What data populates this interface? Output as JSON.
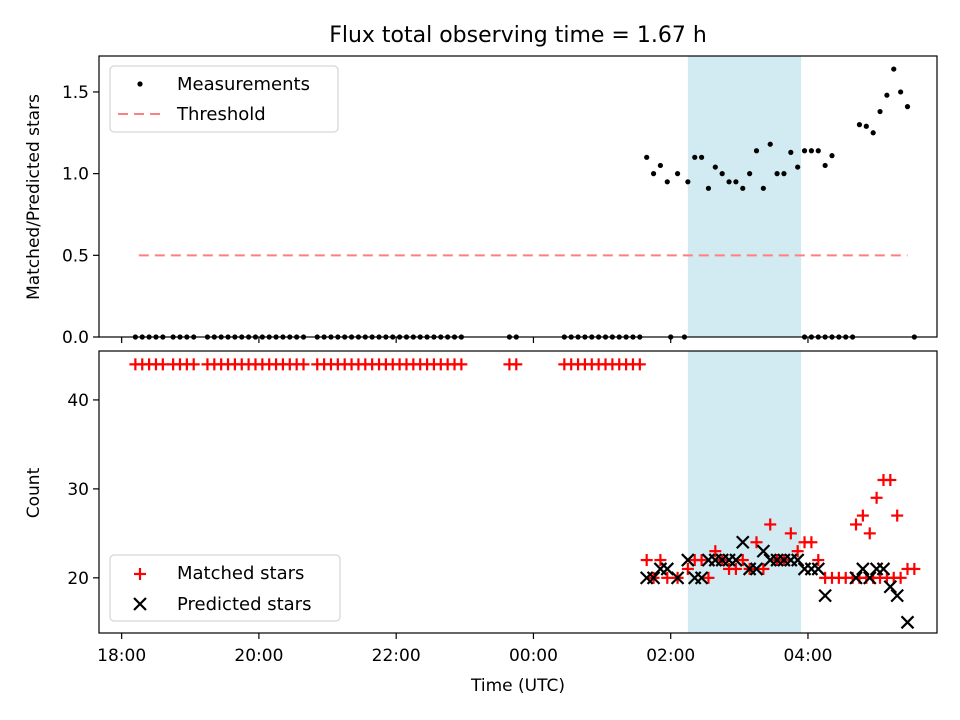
{
  "chart_data": [
    {
      "panel": "top",
      "type": "scatter",
      "title": "Flux total observing time = 1.67 h",
      "xlabel": "",
      "ylabel": "Matched/Predicted stars",
      "ylim": [
        0,
        1.72
      ],
      "yticks": [
        "0.0",
        "0.5",
        "1.0",
        "1.5"
      ],
      "highlight_span": {
        "x": [
          2.25,
          3.9
        ],
        "color": "#add8e6"
      },
      "legend": {
        "position": "upper-left",
        "entries": [
          "Measurements",
          "Threshold"
        ]
      },
      "series": [
        {
          "name": "Measurements",
          "type": "scatter",
          "color": "#000000",
          "points": [
            [
              -5.8,
              0
            ],
            [
              -5.7,
              0
            ],
            [
              -5.6,
              0
            ],
            [
              -5.5,
              0
            ],
            [
              -5.4,
              0
            ],
            [
              -5.25,
              0
            ],
            [
              -5.15,
              0
            ],
            [
              -5.05,
              0
            ],
            [
              -4.95,
              0
            ],
            [
              -4.75,
              0
            ],
            [
              -4.65,
              0
            ],
            [
              -4.55,
              0
            ],
            [
              -4.45,
              0
            ],
            [
              -4.35,
              0
            ],
            [
              -4.25,
              0
            ],
            [
              -4.15,
              0
            ],
            [
              -4.05,
              0
            ],
            [
              -3.95,
              0
            ],
            [
              -3.85,
              0
            ],
            [
              -3.75,
              0
            ],
            [
              -3.65,
              0
            ],
            [
              -3.55,
              0
            ],
            [
              -3.45,
              0
            ],
            [
              -3.35,
              0
            ],
            [
              -3.15,
              0
            ],
            [
              -3.05,
              0
            ],
            [
              -2.95,
              0
            ],
            [
              -2.85,
              0
            ],
            [
              -2.75,
              0
            ],
            [
              -2.65,
              0
            ],
            [
              -2.55,
              0
            ],
            [
              -2.45,
              0
            ],
            [
              -2.35,
              0
            ],
            [
              -2.25,
              0
            ],
            [
              -2.15,
              0
            ],
            [
              -2.05,
              0
            ],
            [
              -1.95,
              0
            ],
            [
              -1.85,
              0
            ],
            [
              -1.75,
              0
            ],
            [
              -1.65,
              0
            ],
            [
              -1.55,
              0
            ],
            [
              -1.45,
              0
            ],
            [
              -1.35,
              0
            ],
            [
              -1.25,
              0
            ],
            [
              -1.15,
              0
            ],
            [
              -1.05,
              0
            ],
            [
              -0.35,
              0
            ],
            [
              -0.25,
              0
            ],
            [
              0.45,
              0
            ],
            [
              0.55,
              0
            ],
            [
              0.65,
              0
            ],
            [
              0.75,
              0
            ],
            [
              0.85,
              0
            ],
            [
              0.95,
              0
            ],
            [
              1.05,
              0
            ],
            [
              1.15,
              0
            ],
            [
              1.25,
              0
            ],
            [
              1.35,
              0
            ],
            [
              1.45,
              0
            ],
            [
              1.55,
              0
            ],
            [
              2.0,
              0
            ],
            [
              2.2,
              0
            ],
            [
              1.65,
              1.1
            ],
            [
              1.75,
              1.0
            ],
            [
              1.85,
              1.05
            ],
            [
              1.95,
              0.95
            ],
            [
              2.1,
              1.0
            ],
            [
              2.25,
              0.95
            ],
            [
              2.35,
              1.1
            ],
            [
              2.45,
              1.1
            ],
            [
              2.55,
              0.91
            ],
            [
              2.65,
              1.04
            ],
            [
              2.75,
              1.0
            ],
            [
              2.85,
              0.95
            ],
            [
              2.95,
              0.95
            ],
            [
              3.05,
              0.91
            ],
            [
              3.15,
              1.0
            ],
            [
              3.25,
              1.14
            ],
            [
              3.35,
              0.91
            ],
            [
              3.45,
              1.18
            ],
            [
              3.55,
              1.0
            ],
            [
              3.65,
              1.0
            ],
            [
              3.75,
              1.13
            ],
            [
              3.85,
              1.04
            ],
            [
              3.95,
              1.14
            ],
            [
              4.05,
              1.14
            ],
            [
              4.15,
              1.14
            ],
            [
              4.25,
              1.05
            ],
            [
              4.35,
              1.11
            ],
            [
              3.95,
              0
            ],
            [
              4.05,
              0
            ],
            [
              4.15,
              0
            ],
            [
              4.25,
              0
            ],
            [
              4.35,
              0
            ],
            [
              4.45,
              0
            ],
            [
              4.55,
              0
            ],
            [
              4.65,
              0
            ],
            [
              4.75,
              1.3
            ],
            [
              4.85,
              1.29
            ],
            [
              4.95,
              1.25
            ],
            [
              5.05,
              1.38
            ],
            [
              5.15,
              1.48
            ],
            [
              5.25,
              1.64
            ],
            [
              5.35,
              1.5
            ],
            [
              5.45,
              1.41
            ],
            [
              5.55,
              0
            ]
          ]
        },
        {
          "name": "Threshold",
          "type": "line",
          "style": "dashed",
          "color": "#ff7f7f",
          "x": [
            -5.75,
            5.45
          ],
          "y": [
            0.5,
            0.5
          ]
        }
      ]
    },
    {
      "panel": "bottom",
      "type": "scatter",
      "title": "",
      "xlabel": "Time (UTC)",
      "ylabel": "Count",
      "ylim": [
        13.8,
        45.5
      ],
      "yticks": [
        "20",
        "30",
        "40"
      ],
      "xlim": [
        -6.33,
        5.88
      ],
      "xtick_values": [
        -6,
        -4,
        -2,
        0,
        2,
        4
      ],
      "xticks": [
        "18:00",
        "20:00",
        "22:00",
        "00:00",
        "02:00",
        "04:00"
      ],
      "highlight_span": {
        "x": [
          2.25,
          3.9
        ],
        "color": "#add8e6"
      },
      "legend": {
        "position": "lower-left",
        "entries": [
          "Matched stars",
          "Predicted stars"
        ]
      },
      "series": [
        {
          "name": "Matched stars",
          "marker": "plus",
          "color": "#ff0000",
          "points": [
            [
              -5.8,
              44
            ],
            [
              -5.7,
              44
            ],
            [
              -5.6,
              44
            ],
            [
              -5.5,
              44
            ],
            [
              -5.4,
              44
            ],
            [
              -5.25,
              44
            ],
            [
              -5.15,
              44
            ],
            [
              -5.05,
              44
            ],
            [
              -4.95,
              44
            ],
            [
              -4.75,
              44
            ],
            [
              -4.65,
              44
            ],
            [
              -4.55,
              44
            ],
            [
              -4.45,
              44
            ],
            [
              -4.35,
              44
            ],
            [
              -4.25,
              44
            ],
            [
              -4.15,
              44
            ],
            [
              -4.05,
              44
            ],
            [
              -3.95,
              44
            ],
            [
              -3.85,
              44
            ],
            [
              -3.75,
              44
            ],
            [
              -3.65,
              44
            ],
            [
              -3.55,
              44
            ],
            [
              -3.45,
              44
            ],
            [
              -3.35,
              44
            ],
            [
              -3.15,
              44
            ],
            [
              -3.05,
              44
            ],
            [
              -2.95,
              44
            ],
            [
              -2.85,
              44
            ],
            [
              -2.75,
              44
            ],
            [
              -2.65,
              44
            ],
            [
              -2.55,
              44
            ],
            [
              -2.45,
              44
            ],
            [
              -2.35,
              44
            ],
            [
              -2.25,
              44
            ],
            [
              -2.15,
              44
            ],
            [
              -2.05,
              44
            ],
            [
              -1.95,
              44
            ],
            [
              -1.85,
              44
            ],
            [
              -1.75,
              44
            ],
            [
              -1.65,
              44
            ],
            [
              -1.55,
              44
            ],
            [
              -1.45,
              44
            ],
            [
              -1.35,
              44
            ],
            [
              -1.25,
              44
            ],
            [
              -1.15,
              44
            ],
            [
              -1.05,
              44
            ],
            [
              -0.35,
              44
            ],
            [
              -0.25,
              44
            ],
            [
              0.45,
              44
            ],
            [
              0.55,
              44
            ],
            [
              0.65,
              44
            ],
            [
              0.75,
              44
            ],
            [
              0.85,
              44
            ],
            [
              0.95,
              44
            ],
            [
              1.05,
              44
            ],
            [
              1.15,
              44
            ],
            [
              1.25,
              44
            ],
            [
              1.35,
              44
            ],
            [
              1.45,
              44
            ],
            [
              1.55,
              44
            ],
            [
              1.65,
              22
            ],
            [
              1.75,
              20
            ],
            [
              1.85,
              22
            ],
            [
              1.95,
              20
            ],
            [
              2.1,
              20
            ],
            [
              2.25,
              21
            ],
            [
              2.35,
              22
            ],
            [
              2.45,
              22
            ],
            [
              2.55,
              20
            ],
            [
              2.65,
              23
            ],
            [
              2.75,
              22
            ],
            [
              2.85,
              21
            ],
            [
              2.95,
              21
            ],
            [
              3.05,
              22
            ],
            [
              3.15,
              21
            ],
            [
              3.25,
              24
            ],
            [
              3.35,
              21
            ],
            [
              3.45,
              26
            ],
            [
              3.55,
              22
            ],
            [
              3.65,
              22
            ],
            [
              3.75,
              25
            ],
            [
              3.85,
              23
            ],
            [
              3.95,
              24
            ],
            [
              4.05,
              24
            ],
            [
              4.15,
              22
            ],
            [
              4.25,
              20
            ],
            [
              4.35,
              20
            ],
            [
              4.45,
              20
            ],
            [
              4.55,
              20
            ],
            [
              4.65,
              20
            ],
            [
              4.75,
              20
            ],
            [
              4.85,
              20
            ],
            [
              4.95,
              20
            ],
            [
              5.05,
              20
            ],
            [
              5.15,
              20
            ],
            [
              5.25,
              20
            ],
            [
              5.35,
              20
            ],
            [
              4.7,
              26
            ],
            [
              4.8,
              27
            ],
            [
              4.9,
              25
            ],
            [
              5.0,
              29
            ],
            [
              5.1,
              31
            ],
            [
              5.2,
              31
            ],
            [
              5.3,
              27
            ],
            [
              5.45,
              21
            ],
            [
              5.55,
              21
            ]
          ]
        },
        {
          "name": "Predicted stars",
          "marker": "x",
          "color": "#000000",
          "points": [
            [
              1.65,
              20
            ],
            [
              1.75,
              20
            ],
            [
              1.85,
              21
            ],
            [
              1.95,
              21
            ],
            [
              2.1,
              20
            ],
            [
              2.25,
              22
            ],
            [
              2.35,
              20
            ],
            [
              2.45,
              20
            ],
            [
              2.55,
              22
            ],
            [
              2.65,
              22
            ],
            [
              2.75,
              22
            ],
            [
              2.85,
              22
            ],
            [
              2.95,
              22
            ],
            [
              3.05,
              24
            ],
            [
              3.15,
              21
            ],
            [
              3.25,
              21
            ],
            [
              3.35,
              23
            ],
            [
              3.45,
              22
            ],
            [
              3.55,
              22
            ],
            [
              3.65,
              22
            ],
            [
              3.75,
              22
            ],
            [
              3.85,
              22
            ],
            [
              3.95,
              21
            ],
            [
              4.05,
              21
            ],
            [
              4.15,
              21
            ],
            [
              4.25,
              18
            ],
            [
              4.7,
              20
            ],
            [
              4.8,
              21
            ],
            [
              4.9,
              20
            ],
            [
              5.0,
              21
            ],
            [
              5.1,
              21
            ],
            [
              5.2,
              19
            ],
            [
              5.3,
              18
            ],
            [
              5.45,
              15
            ]
          ]
        }
      ]
    }
  ]
}
